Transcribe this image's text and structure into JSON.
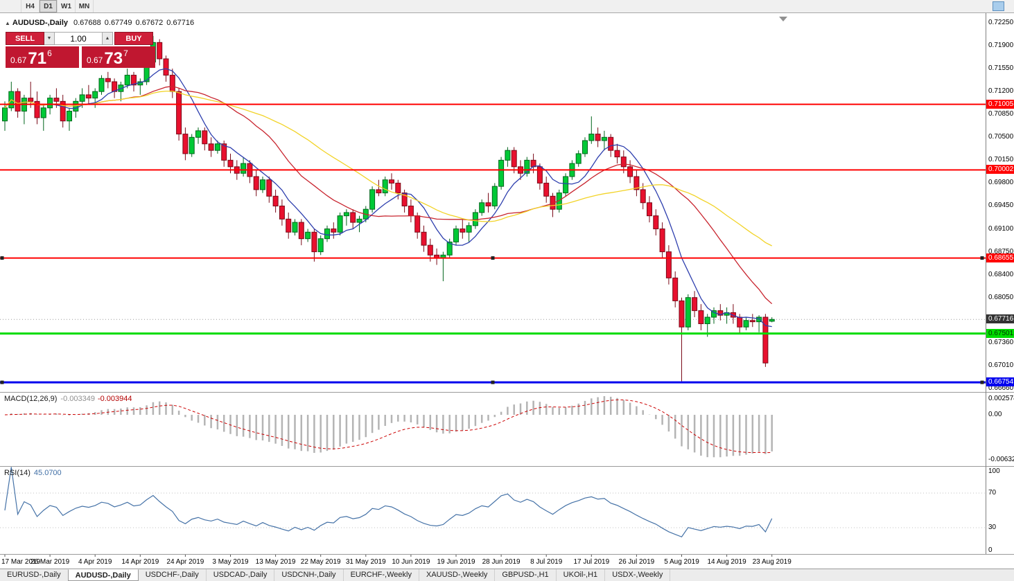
{
  "toolbar": {
    "timeframes": [
      {
        "label": "H4",
        "active": false
      },
      {
        "label": "D1",
        "active": true
      },
      {
        "label": "W1",
        "active": false
      },
      {
        "label": "MN",
        "active": false
      }
    ],
    "window_icon_color": "#a9cdec"
  },
  "chart_header": {
    "collapse_icon": "▲",
    "symbol": "AUDUSD-,Daily",
    "open": "0.67688",
    "high": "0.67749",
    "low": "0.67672",
    "close": "0.67716"
  },
  "trade_panel": {
    "sell_label": "SELL",
    "buy_label": "BUY",
    "volume": "1.00",
    "spinner_up_icon": "▲",
    "spinner_down_icon": "▼",
    "bid": {
      "prefix": "0.67",
      "big": "71",
      "sup": "6",
      "value": "0.67716"
    },
    "ask": {
      "prefix": "0.67",
      "big": "73",
      "sup": "7",
      "value": "0.67737"
    },
    "button_color": "#cf1f39",
    "price_box_color": "#c01730"
  },
  "price_scale": {
    "max_tick": 0.7225,
    "min_tick": 0.6666,
    "ticks": [
      "0.72250",
      "0.71900",
      "0.71550",
      "0.71200",
      "0.70850",
      "0.70500",
      "0.70150",
      "0.69800",
      "0.69450",
      "0.69100",
      "0.68750",
      "0.68400",
      "0.68050",
      "0.67360",
      "0.67010",
      "0.66660"
    ]
  },
  "hlines": [
    {
      "price": 0.71005,
      "label": "0.71005",
      "color": "#ff0000",
      "width": 2,
      "selected": false,
      "text_color": "#ffffff"
    },
    {
      "price": 0.70002,
      "label": "0.70002",
      "color": "#ff0000",
      "width": 2,
      "selected": false,
      "text_color": "#ffffff"
    },
    {
      "price": 0.68655,
      "label": "0.68655",
      "color": "#ff0000",
      "width": 2,
      "selected": true,
      "text_color": "#ffffff"
    },
    {
      "price": 0.67501,
      "label": "0.67501",
      "color": "#00dc00",
      "width": 3,
      "selected": false,
      "text_color": "#003300"
    },
    {
      "price": 0.66754,
      "label": "0.66754",
      "color": "#0000ee",
      "width": 3,
      "selected": true,
      "text_color": "#ffffff"
    }
  ],
  "current_price": {
    "price": 0.67716,
    "label": "0.67716",
    "bg": "#333333"
  },
  "chart_data": {
    "type": "candlestick",
    "symbol": "AUDUSD-",
    "timeframe": "Daily",
    "bars_per_label": 7,
    "x_labels": [
      "17 Mar 2019",
      "26 Mar 2019",
      "4 Apr 2019",
      "14 Apr 2019",
      "24 Apr 2019",
      "3 May 2019",
      "13 May 2019",
      "22 May 2019",
      "31 May 2019",
      "10 Jun 2019",
      "19 Jun 2019",
      "28 Jun 2019",
      "8 Jul 2019",
      "17 Jul 2019",
      "26 Jul 2019",
      "5 Aug 2019",
      "14 Aug 2019",
      "23 Aug 2019"
    ],
    "up_color": "#00c936",
    "up_border": "#00651b",
    "down_color": "#e8102e",
    "down_border": "#7a0a18",
    "ma": [
      {
        "period": 7,
        "color": "#2e3fae"
      },
      {
        "period": 20,
        "color": "#c8242e"
      },
      {
        "period": 34,
        "color": "#f2d327"
      }
    ],
    "ohlc": [
      [
        0.7075,
        0.7105,
        0.706,
        0.7095
      ],
      [
        0.7095,
        0.7135,
        0.709,
        0.712
      ],
      [
        0.712,
        0.7125,
        0.708,
        0.709
      ],
      [
        0.709,
        0.7115,
        0.707,
        0.711
      ],
      [
        0.711,
        0.7135,
        0.7095,
        0.7105
      ],
      [
        0.7105,
        0.712,
        0.707,
        0.708
      ],
      [
        0.708,
        0.71,
        0.706,
        0.7095
      ],
      [
        0.7095,
        0.7115,
        0.7085,
        0.711
      ],
      [
        0.711,
        0.7125,
        0.7095,
        0.7105
      ],
      [
        0.7105,
        0.7115,
        0.7065,
        0.7075
      ],
      [
        0.7075,
        0.7095,
        0.706,
        0.709
      ],
      [
        0.709,
        0.711,
        0.708,
        0.7105
      ],
      [
        0.7105,
        0.7125,
        0.7095,
        0.7115
      ],
      [
        0.7115,
        0.713,
        0.71,
        0.711
      ],
      [
        0.711,
        0.7125,
        0.7095,
        0.712
      ],
      [
        0.712,
        0.7145,
        0.7115,
        0.714
      ],
      [
        0.714,
        0.715,
        0.7125,
        0.7135
      ],
      [
        0.7135,
        0.714,
        0.711,
        0.712
      ],
      [
        0.712,
        0.7135,
        0.7105,
        0.713
      ],
      [
        0.713,
        0.7155,
        0.7125,
        0.7145
      ],
      [
        0.7145,
        0.715,
        0.712,
        0.713
      ],
      [
        0.713,
        0.714,
        0.7115,
        0.7135
      ],
      [
        0.7135,
        0.717,
        0.713,
        0.7165
      ],
      [
        0.7165,
        0.7205,
        0.716,
        0.7195
      ],
      [
        0.7195,
        0.72,
        0.716,
        0.717
      ],
      [
        0.717,
        0.7175,
        0.7135,
        0.7145
      ],
      [
        0.7145,
        0.7155,
        0.711,
        0.712
      ],
      [
        0.712,
        0.7125,
        0.7045,
        0.7055
      ],
      [
        0.7055,
        0.7065,
        0.7015,
        0.7025
      ],
      [
        0.7025,
        0.7055,
        0.702,
        0.705
      ],
      [
        0.705,
        0.7065,
        0.704,
        0.706
      ],
      [
        0.706,
        0.7065,
        0.703,
        0.704
      ],
      [
        0.704,
        0.705,
        0.702,
        0.703
      ],
      [
        0.703,
        0.7045,
        0.7025,
        0.704
      ],
      [
        0.704,
        0.7045,
        0.7005,
        0.7015
      ],
      [
        0.7015,
        0.7025,
        0.6995,
        0.7005
      ],
      [
        0.7005,
        0.7015,
        0.6985,
        0.6995
      ],
      [
        0.6995,
        0.702,
        0.699,
        0.701
      ],
      [
        0.701,
        0.7015,
        0.698,
        0.699
      ],
      [
        0.699,
        0.7,
        0.696,
        0.697
      ],
      [
        0.697,
        0.699,
        0.6965,
        0.6985
      ],
      [
        0.6985,
        0.699,
        0.695,
        0.696
      ],
      [
        0.696,
        0.697,
        0.6935,
        0.6945
      ],
      [
        0.6945,
        0.6955,
        0.6915,
        0.6925
      ],
      [
        0.6925,
        0.6935,
        0.6895,
        0.6905
      ],
      [
        0.6905,
        0.6925,
        0.69,
        0.692
      ],
      [
        0.692,
        0.6925,
        0.6885,
        0.6895
      ],
      [
        0.6895,
        0.691,
        0.689,
        0.6905
      ],
      [
        0.6905,
        0.691,
        0.686,
        0.6875
      ],
      [
        0.6875,
        0.69,
        0.687,
        0.6895
      ],
      [
        0.6895,
        0.6915,
        0.689,
        0.691
      ],
      [
        0.691,
        0.692,
        0.6895,
        0.6905
      ],
      [
        0.6905,
        0.6935,
        0.69,
        0.693
      ],
      [
        0.693,
        0.694,
        0.6915,
        0.6935
      ],
      [
        0.6935,
        0.694,
        0.691,
        0.692
      ],
      [
        0.692,
        0.693,
        0.6905,
        0.6925
      ],
      [
        0.6925,
        0.6945,
        0.692,
        0.694
      ],
      [
        0.694,
        0.6975,
        0.6935,
        0.697
      ],
      [
        0.697,
        0.6985,
        0.696,
        0.6965
      ],
      [
        0.6965,
        0.699,
        0.696,
        0.6985
      ],
      [
        0.6985,
        0.6995,
        0.697,
        0.698
      ],
      [
        0.698,
        0.6985,
        0.6955,
        0.6965
      ],
      [
        0.6965,
        0.697,
        0.6935,
        0.6945
      ],
      [
        0.6945,
        0.6955,
        0.692,
        0.693
      ],
      [
        0.693,
        0.6935,
        0.6895,
        0.6905
      ],
      [
        0.6905,
        0.6915,
        0.6875,
        0.6885
      ],
      [
        0.6885,
        0.6895,
        0.686,
        0.687
      ],
      [
        0.687,
        0.688,
        0.6855,
        0.6865
      ],
      [
        0.6865,
        0.6875,
        0.683,
        0.687
      ],
      [
        0.687,
        0.6895,
        0.6865,
        0.689
      ],
      [
        0.689,
        0.6915,
        0.6885,
        0.691
      ],
      [
        0.691,
        0.6925,
        0.6895,
        0.6905
      ],
      [
        0.6905,
        0.692,
        0.689,
        0.6915
      ],
      [
        0.6915,
        0.694,
        0.691,
        0.6935
      ],
      [
        0.6935,
        0.6955,
        0.693,
        0.695
      ],
      [
        0.695,
        0.6965,
        0.6935,
        0.6945
      ],
      [
        0.6945,
        0.698,
        0.694,
        0.6975
      ],
      [
        0.6975,
        0.702,
        0.697,
        0.7015
      ],
      [
        0.7015,
        0.7035,
        0.7005,
        0.703
      ],
      [
        0.703,
        0.7035,
        0.6995,
        0.7005
      ],
      [
        0.7005,
        0.7015,
        0.6985,
        0.6995
      ],
      [
        0.6995,
        0.702,
        0.699,
        0.7015
      ],
      [
        0.7015,
        0.7025,
        0.6995,
        0.7005
      ],
      [
        0.7005,
        0.701,
        0.697,
        0.698
      ],
      [
        0.698,
        0.699,
        0.695,
        0.696
      ],
      [
        0.696,
        0.6965,
        0.6928,
        0.694
      ],
      [
        0.694,
        0.697,
        0.6935,
        0.6965
      ],
      [
        0.6965,
        0.6995,
        0.696,
        0.699
      ],
      [
        0.699,
        0.7015,
        0.6985,
        0.701
      ],
      [
        0.701,
        0.703,
        0.7005,
        0.7025
      ],
      [
        0.7025,
        0.705,
        0.702,
        0.7045
      ],
      [
        0.7045,
        0.7082,
        0.704,
        0.7055
      ],
      [
        0.7055,
        0.7065,
        0.7035,
        0.7045
      ],
      [
        0.7045,
        0.706,
        0.703,
        0.705
      ],
      [
        0.705,
        0.7055,
        0.702,
        0.703
      ],
      [
        0.703,
        0.704,
        0.701,
        0.702
      ],
      [
        0.702,
        0.703,
        0.6995,
        0.7005
      ],
      [
        0.7005,
        0.7015,
        0.698,
        0.699
      ],
      [
        0.699,
        0.7,
        0.696,
        0.697
      ],
      [
        0.697,
        0.698,
        0.694,
        0.695
      ],
      [
        0.695,
        0.696,
        0.692,
        0.693
      ],
      [
        0.693,
        0.694,
        0.69,
        0.691
      ],
      [
        0.691,
        0.692,
        0.6865,
        0.6875
      ],
      [
        0.6875,
        0.6885,
        0.6825,
        0.6835
      ],
      [
        0.6835,
        0.6845,
        0.679,
        0.68
      ],
      [
        0.68,
        0.6805,
        0.6677,
        0.676
      ],
      [
        0.676,
        0.681,
        0.6755,
        0.6805
      ],
      [
        0.6805,
        0.6815,
        0.6775,
        0.6785
      ],
      [
        0.6785,
        0.6795,
        0.6755,
        0.6765
      ],
      [
        0.6765,
        0.678,
        0.6745,
        0.6775
      ],
      [
        0.6775,
        0.679,
        0.6765,
        0.6785
      ],
      [
        0.6785,
        0.6795,
        0.677,
        0.6778
      ],
      [
        0.6778,
        0.679,
        0.6765,
        0.6782
      ],
      [
        0.6782,
        0.6795,
        0.6765,
        0.6775
      ],
      [
        0.6775,
        0.678,
        0.675,
        0.676
      ],
      [
        0.676,
        0.6775,
        0.6755,
        0.677
      ],
      [
        0.677,
        0.678,
        0.676,
        0.6768
      ],
      [
        0.6768,
        0.6778,
        0.6752,
        0.6775
      ],
      [
        0.6775,
        0.678,
        0.6699,
        0.6705
      ],
      [
        0.67688,
        0.67749,
        0.67672,
        0.67716
      ]
    ]
  },
  "macd_panel": {
    "name": "MACD(12,26,9)",
    "value_main": "-0.003349",
    "value_signal": "-0.003944",
    "fast": 12,
    "slow": 26,
    "signal": 9,
    "scale_top": "0.002574",
    "scale_zero": "0.00",
    "scale_bottom": "-0.006326",
    "hist_color": "#b4b4b4",
    "signal_color": "#cc0000"
  },
  "rsi_panel": {
    "name": "RSI(14)",
    "value": "45.0700",
    "period": 14,
    "levels": [
      "100",
      "70",
      "30",
      "0"
    ],
    "line_color": "#4572a7"
  },
  "tabs": {
    "active_index": 1,
    "items": [
      "EURUSD-,Daily",
      "AUDUSD-,Daily",
      "USDCHF-,Daily",
      "USDCAD-,Daily",
      "USDCNH-,Daily",
      "EURCHF-,Weekly",
      "XAUUSD-,Weekly",
      "GBPUSD-,H1",
      "UKOil-,H1",
      "USDX-,Weekly"
    ]
  }
}
